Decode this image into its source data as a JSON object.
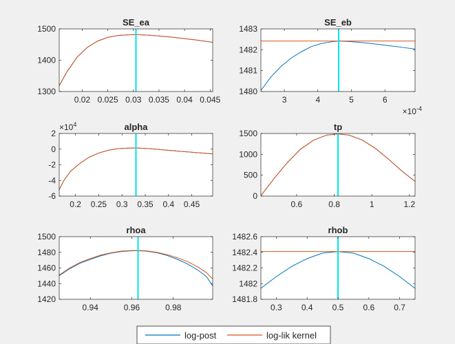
{
  "chart_data": [
    {
      "type": "line",
      "title": "SE_ea",
      "xlim": [
        0.0155,
        0.0455
      ],
      "ylim": [
        1300,
        1500
      ],
      "xticks": [
        0.02,
        0.025,
        0.03,
        0.035,
        0.04,
        0.045
      ],
      "xtick_labels": [
        "0.02",
        "0.025",
        "0.03",
        "0.035",
        "0.04",
        "0.045"
      ],
      "yticks": [
        1300,
        1400,
        1500
      ],
      "ytick_labels": [
        "1300",
        "1400",
        "1500"
      ],
      "vline_x": 0.0305,
      "series": [
        {
          "name": "log-post",
          "x": [
            0.0155,
            0.017,
            0.019,
            0.021,
            0.023,
            0.025,
            0.027,
            0.029,
            0.0305,
            0.033,
            0.036,
            0.039,
            0.042,
            0.0455
          ],
          "y": [
            1318,
            1362,
            1410,
            1441,
            1461,
            1473,
            1479,
            1481,
            1482,
            1480,
            1476,
            1471,
            1465,
            1457
          ]
        },
        {
          "name": "log-lik kernel",
          "x": [
            0.0155,
            0.017,
            0.019,
            0.021,
            0.023,
            0.025,
            0.027,
            0.029,
            0.0305,
            0.033,
            0.036,
            0.039,
            0.042,
            0.0455
          ],
          "y": [
            1319,
            1363,
            1410,
            1441,
            1461,
            1473,
            1479,
            1481,
            1482,
            1480,
            1476,
            1471,
            1465,
            1457
          ]
        }
      ]
    },
    {
      "type": "line",
      "title": "SE_eb",
      "xlim": [
        2.3,
        6.9
      ],
      "ylim": [
        1480,
        1483
      ],
      "xticks": [
        3,
        4,
        5,
        6
      ],
      "xtick_labels": [
        "3",
        "4",
        "5",
        "6"
      ],
      "yticks": [
        1480,
        1481,
        1482,
        1483
      ],
      "ytick_labels": [
        "1480",
        "1481",
        "1482",
        "1483"
      ],
      "x_exponent": "×10",
      "x_exponent_power": "-4",
      "vline_x": 4.62,
      "series": [
        {
          "name": "log-post",
          "x": [
            2.3,
            2.6,
            2.9,
            3.2,
            3.5,
            3.8,
            4.1,
            4.4,
            4.62,
            4.9,
            5.3,
            5.7,
            6.1,
            6.5,
            6.9
          ],
          "y": [
            1480.05,
            1480.7,
            1481.2,
            1481.6,
            1481.9,
            1482.15,
            1482.3,
            1482.38,
            1482.42,
            1482.4,
            1482.35,
            1482.28,
            1482.2,
            1482.12,
            1482.03
          ]
        },
        {
          "name": "log-lik kernel",
          "x": [
            2.3,
            3.5,
            4.62,
            5.8,
            6.9
          ],
          "y": [
            1482.42,
            1482.42,
            1482.42,
            1482.42,
            1482.42
          ]
        }
      ]
    },
    {
      "type": "line",
      "title": "alpha",
      "xlim": [
        0.165,
        0.495
      ],
      "ylim": [
        -6,
        2
      ],
      "xticks": [
        0.2,
        0.25,
        0.3,
        0.35,
        0.4,
        0.45
      ],
      "xtick_labels": [
        "0.2",
        "0.25",
        "0.3",
        "0.35",
        "0.4",
        "0.45"
      ],
      "yticks": [
        -6,
        -4,
        -2,
        0,
        2
      ],
      "ytick_labels": [
        "-6",
        "-4",
        "-2",
        "0",
        "2"
      ],
      "y_exponent": "×10",
      "y_exponent_power": "4",
      "vline_x": 0.33,
      "series": [
        {
          "name": "log-post",
          "x": [
            0.165,
            0.175,
            0.19,
            0.21,
            0.23,
            0.25,
            0.27,
            0.29,
            0.31,
            0.33,
            0.36,
            0.39,
            0.42,
            0.45,
            0.495
          ],
          "y": [
            -5.2,
            -4.0,
            -2.8,
            -1.8,
            -1.0,
            -0.5,
            -0.15,
            0.05,
            0.12,
            0.15,
            0.05,
            -0.1,
            -0.25,
            -0.4,
            -0.6
          ]
        },
        {
          "name": "log-lik kernel",
          "x": [
            0.165,
            0.175,
            0.19,
            0.21,
            0.23,
            0.25,
            0.27,
            0.29,
            0.31,
            0.33,
            0.36,
            0.39,
            0.42,
            0.45,
            0.495
          ],
          "y": [
            -5.2,
            -4.0,
            -2.8,
            -1.8,
            -1.0,
            -0.5,
            -0.15,
            0.05,
            0.12,
            0.15,
            0.05,
            -0.1,
            -0.25,
            -0.4,
            -0.6
          ]
        }
      ]
    },
    {
      "type": "line",
      "title": "tp",
      "xlim": [
        0.41,
        1.23
      ],
      "ylim": [
        0,
        1500
      ],
      "xticks": [
        0.6,
        0.8,
        1,
        1.2
      ],
      "xtick_labels": [
        "0.6",
        "0.8",
        "1",
        "1.2"
      ],
      "yticks": [
        0,
        500,
        1000,
        1500
      ],
      "ytick_labels": [
        "0",
        "500",
        "1000",
        "1500"
      ],
      "vline_x": 0.82,
      "series": [
        {
          "name": "log-post",
          "x": [
            0.41,
            0.48,
            0.55,
            0.62,
            0.69,
            0.76,
            0.82,
            0.88,
            0.95,
            1.02,
            1.09,
            1.16,
            1.23
          ],
          "y": [
            10,
            420,
            800,
            1120,
            1340,
            1460,
            1490,
            1460,
            1340,
            1140,
            880,
            600,
            350
          ]
        },
        {
          "name": "log-lik kernel",
          "x": [
            0.41,
            0.48,
            0.55,
            0.62,
            0.69,
            0.76,
            0.82,
            0.88,
            0.95,
            1.02,
            1.09,
            1.16,
            1.23
          ],
          "y": [
            10,
            420,
            800,
            1120,
            1340,
            1460,
            1490,
            1460,
            1340,
            1140,
            880,
            600,
            350
          ]
        }
      ]
    },
    {
      "type": "line",
      "title": "rhoa",
      "xlim": [
        0.925,
        0.999
      ],
      "ylim": [
        1420,
        1500
      ],
      "xticks": [
        0.94,
        0.96,
        0.98
      ],
      "xtick_labels": [
        "0.94",
        "0.96",
        "0.98"
      ],
      "yticks": [
        1420,
        1440,
        1460,
        1480,
        1500
      ],
      "ytick_labels": [
        "1420",
        "1440",
        "1460",
        "1480",
        "1500"
      ],
      "vline_x": 0.963,
      "series": [
        {
          "name": "log-post",
          "x": [
            0.925,
            0.93,
            0.935,
            0.94,
            0.945,
            0.95,
            0.955,
            0.96,
            0.963,
            0.967,
            0.972,
            0.977,
            0.982,
            0.987,
            0.992,
            0.996,
            0.999
          ],
          "y": [
            1450,
            1459,
            1466,
            1471,
            1475.5,
            1479,
            1481,
            1482,
            1482,
            1481.5,
            1479.5,
            1476,
            1471,
            1465,
            1457,
            1449,
            1437
          ]
        },
        {
          "name": "log-lik kernel",
          "x": [
            0.925,
            0.93,
            0.935,
            0.94,
            0.945,
            0.95,
            0.955,
            0.96,
            0.963,
            0.967,
            0.972,
            0.977,
            0.982,
            0.987,
            0.992,
            0.996,
            0.999
          ],
          "y": [
            1451,
            1460,
            1467,
            1472,
            1476.5,
            1479.5,
            1481.5,
            1482.3,
            1482.3,
            1482,
            1480,
            1477,
            1473,
            1468,
            1461,
            1454,
            1446
          ]
        }
      ]
    },
    {
      "type": "line",
      "title": "rhob",
      "xlim": [
        0.25,
        0.75
      ],
      "ylim": [
        1481.8,
        1482.6
      ],
      "xticks": [
        0.3,
        0.4,
        0.5,
        0.6,
        0.7
      ],
      "xtick_labels": [
        "0.3",
        "0.4",
        "0.5",
        "0.6",
        "0.7"
      ],
      "yticks": [
        1481.8,
        1482,
        1482.2,
        1482.4,
        1482.6
      ],
      "ytick_labels": [
        "1481.8",
        "1482",
        "1482.2",
        "1482.4",
        "1482.6"
      ],
      "vline_x": 0.5,
      "series": [
        {
          "name": "log-post",
          "x": [
            0.25,
            0.3,
            0.35,
            0.4,
            0.45,
            0.5,
            0.55,
            0.6,
            0.65,
            0.7,
            0.75
          ],
          "y": [
            1481.94,
            1482.09,
            1482.22,
            1482.32,
            1482.39,
            1482.41,
            1482.39,
            1482.32,
            1482.22,
            1482.09,
            1481.94
          ]
        },
        {
          "name": "log-lik kernel",
          "x": [
            0.25,
            0.5,
            0.75
          ],
          "y": [
            1482.41,
            1482.41,
            1482.41
          ]
        }
      ]
    }
  ],
  "legend": {
    "entries": [
      "log-post",
      "log-lik kernel"
    ],
    "placement": "bottom-center"
  },
  "colors": {
    "log_post": "#0072bd",
    "log_lik_kernel": "#d95319",
    "vline": "#00e5ee",
    "figure_background": "#f0f0f0",
    "axes_background": "#ffffff",
    "axis": "#262626",
    "text": "#262626"
  }
}
